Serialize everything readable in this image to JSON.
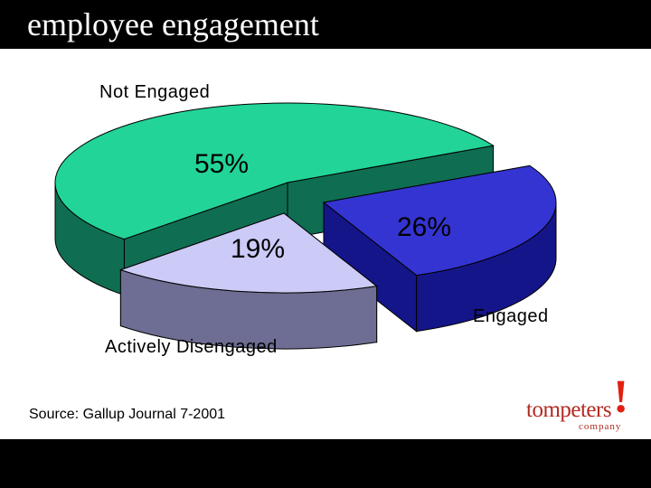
{
  "slide": {
    "title": "employee engagement",
    "source": "Source: Gallup Journal 7-2001",
    "logo": {
      "word": "tompeters",
      "mark": "!",
      "sub": "company"
    }
  },
  "chart_data": {
    "type": "pie",
    "title": "",
    "labels": [
      "Not Engaged",
      "Engaged",
      "Actively Disengaged"
    ],
    "values": [
      55,
      26,
      19
    ],
    "value_labels": [
      "55%",
      "26%",
      "19%"
    ],
    "exploded": [
      "Engaged",
      "Actively Disengaged"
    ],
    "three_d": true,
    "legend": "none",
    "colors": {
      "Not Engaged": {
        "top": "#22d498",
        "side": "#0f6e52"
      },
      "Engaged": {
        "top": "#3434d2",
        "side": "#15158a"
      },
      "Actively Disengaged": {
        "top": "#cccaf6",
        "side": "#6e6e94"
      }
    }
  }
}
